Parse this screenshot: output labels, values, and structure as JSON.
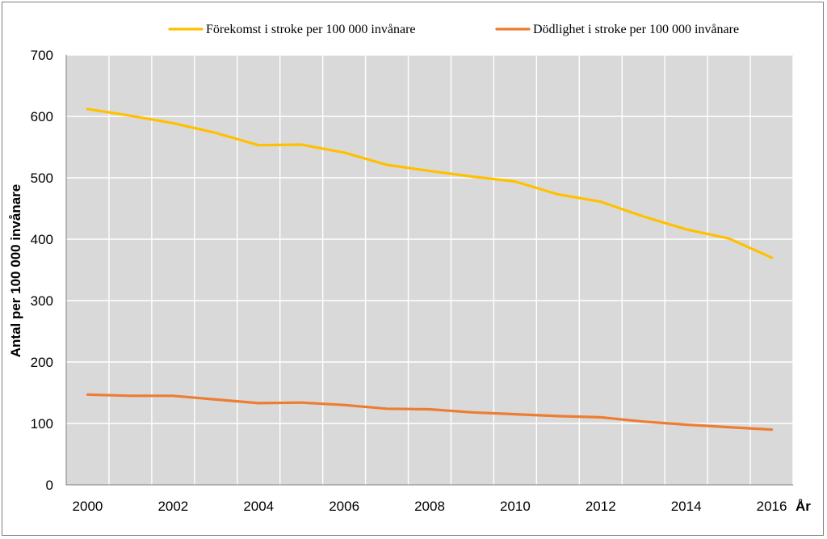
{
  "chart_data": {
    "type": "line",
    "title": "",
    "xlabel": "År",
    "ylabel": "Antal per 100 000 invånare",
    "x": [
      2000,
      2001,
      2002,
      2003,
      2004,
      2005,
      2006,
      2007,
      2008,
      2009,
      2010,
      2011,
      2012,
      2013,
      2014,
      2015,
      2016
    ],
    "xticks": [
      "2000",
      "2002",
      "2004",
      "2006",
      "2008",
      "2010",
      "2012",
      "2014",
      "2016"
    ],
    "yticks": [
      "0",
      "100",
      "200",
      "300",
      "400",
      "500",
      "600",
      "700"
    ],
    "ylim": [
      0,
      700
    ],
    "grid": true,
    "legend_position": "top",
    "series": [
      {
        "name": "Förekomst i stroke per 100 000 invånare",
        "color": "#ffc000",
        "values": [
          612,
          601,
          589,
          573,
          553,
          554,
          541,
          521,
          511,
          502,
          494,
          473,
          461,
          437,
          416,
          401,
          370
        ]
      },
      {
        "name": "Dödlighet i stroke per 100 000 invånare",
        "color": "#ed7d31",
        "values": [
          147,
          145,
          145,
          139,
          133,
          134,
          130,
          124,
          123,
          118,
          115,
          112,
          110,
          103,
          98,
          94,
          90
        ]
      }
    ]
  }
}
